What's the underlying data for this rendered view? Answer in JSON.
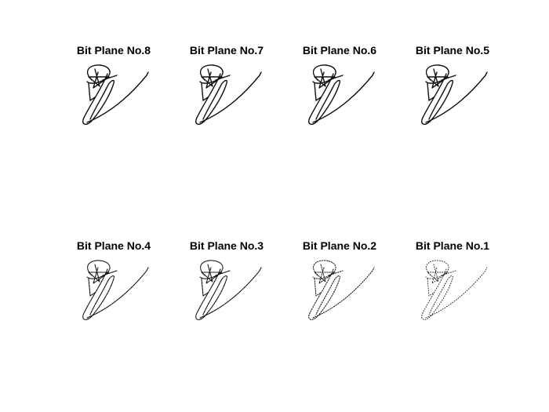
{
  "panels": [
    {
      "id": "p8",
      "title": "Bit Plane No.8"
    },
    {
      "id": "p7",
      "title": "Bit Plane No.7"
    },
    {
      "id": "p6",
      "title": "Bit Plane No.6"
    },
    {
      "id": "p5",
      "title": "Bit Plane No.5"
    },
    {
      "id": "p4",
      "title": "Bit Plane No.4"
    },
    {
      "id": "p3",
      "title": "Bit Plane No.3"
    },
    {
      "id": "p2",
      "title": "Bit Plane No.2"
    },
    {
      "id": "p1",
      "title": "Bit Plane No.1"
    }
  ],
  "image_content": "signature"
}
